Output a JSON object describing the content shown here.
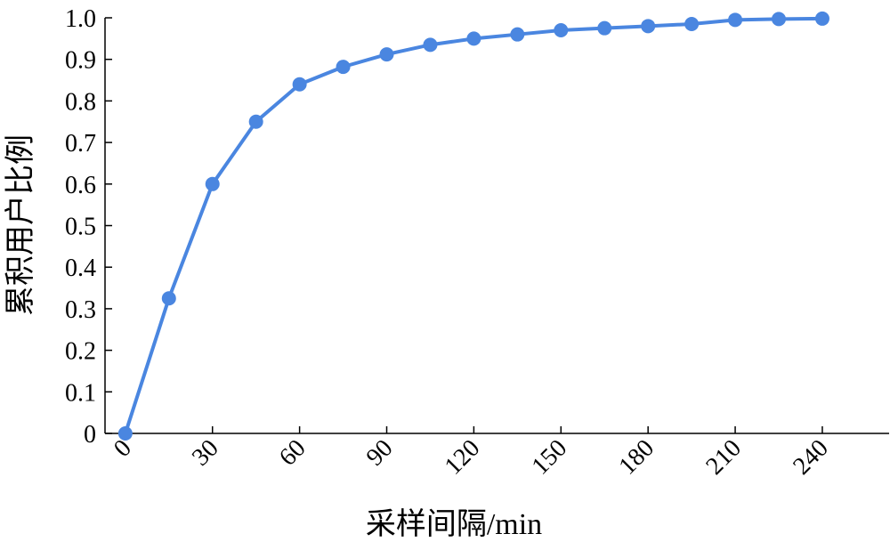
{
  "chart_data": {
    "type": "line",
    "x_label": "采样间隔/min",
    "y_label": "累积用户比例",
    "x": [
      0,
      15,
      30,
      45,
      60,
      75,
      90,
      105,
      120,
      135,
      150,
      165,
      180,
      195,
      210,
      225,
      240
    ],
    "series": [
      {
        "name": "累积用户比例",
        "color": "#4a86e0",
        "values": [
          0,
          0.325,
          0.6,
          0.75,
          0.84,
          0.882,
          0.912,
          0.935,
          0.95,
          0.96,
          0.97,
          0.975,
          0.98,
          0.985,
          0.995,
          0.997,
          0.998
        ]
      }
    ],
    "xlim": [
      -7,
      263
    ],
    "ylim": [
      0,
      1
    ],
    "xticks": [
      0,
      30,
      60,
      90,
      120,
      150,
      180,
      210,
      240
    ],
    "yticks": [
      0,
      0.1,
      0.2,
      0.3,
      0.4,
      0.5,
      0.6,
      0.7,
      0.8,
      0.9,
      {
        "value": 1,
        "label": "1.0"
      }
    ]
  }
}
